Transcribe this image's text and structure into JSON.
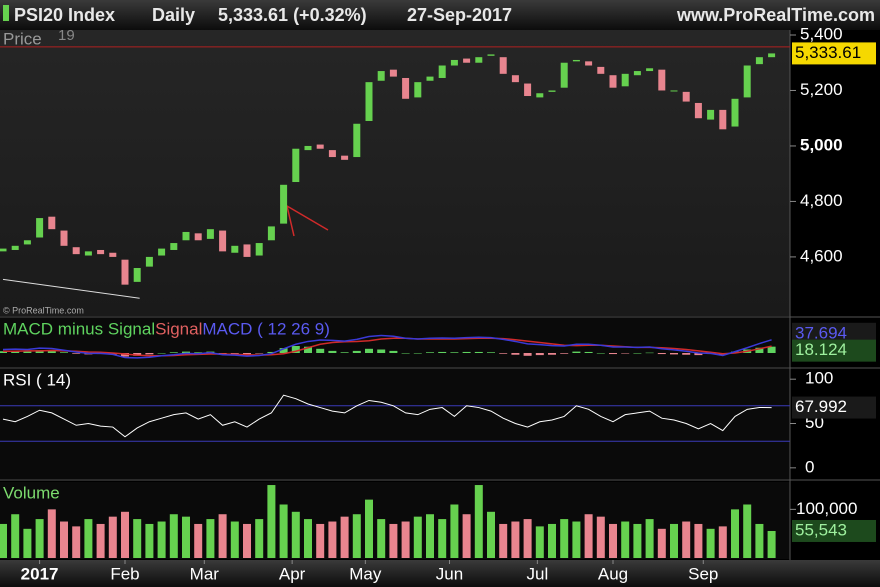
{
  "header": {
    "symbol": "PSI20 Index",
    "period": "Daily",
    "quote": "5,333.61 (+0.32%)",
    "date": "27-Sep-2017",
    "site": "www.ProRealTime.com",
    "copyright": "© ProRealTime.com"
  },
  "chart_data": [
    {
      "type": "candlestick",
      "title": "Price",
      "subtitle": "19",
      "up_color": "#66d14f",
      "down_color": "#e8858f",
      "open": [
        4620,
        4625,
        4645,
        4670,
        4745,
        4695,
        4635,
        4605,
        4625,
        4615,
        4590,
        4510,
        4565,
        4605,
        4625,
        4660,
        4685,
        4665,
        4695,
        4615,
        4645,
        4605,
        4660,
        4720,
        4870,
        4985,
        5005,
        4985,
        4965,
        4960,
        5090,
        5235,
        5275,
        5245,
        5175,
        5235,
        5245,
        5290,
        5315,
        5300,
        5325,
        5320,
        5255,
        5225,
        5175,
        5195,
        5210,
        5305,
        5305,
        5285,
        5255,
        5215,
        5255,
        5270,
        5275,
        5200,
        5195,
        5155,
        5095,
        5130,
        5070,
        5175,
        5295,
        5320
      ],
      "close": [
        4630,
        4640,
        4660,
        4740,
        4700,
        4640,
        4610,
        4620,
        4610,
        4600,
        4500,
        4560,
        4600,
        4630,
        4650,
        4690,
        4660,
        4700,
        4620,
        4640,
        4600,
        4650,
        4710,
        4860,
        4990,
        5000,
        4990,
        4960,
        4950,
        5080,
        5230,
        5270,
        5250,
        5170,
        5230,
        5250,
        5290,
        5310,
        5300,
        5320,
        5330,
        5260,
        5230,
        5180,
        5190,
        5200,
        5300,
        5310,
        5290,
        5260,
        5210,
        5260,
        5270,
        5280,
        5200,
        5200,
        5160,
        5100,
        5130,
        5060,
        5170,
        5290,
        5320,
        5333.61
      ],
      "last_label": "5,333.61",
      "reference_line": 5357,
      "trendline": {
        "x": [
          0,
          11.2
        ],
        "values": [
          4519,
          4451
        ]
      },
      "xlim": [
        0,
        63
      ],
      "ylim": [
        4387,
        5418
      ],
      "yticks": [
        {
          "value": 5400,
          "label": "5,400"
        },
        {
          "value": 5200,
          "label": "5,200"
        },
        {
          "value": 5000,
          "label": "5,000"
        },
        {
          "value": 4800,
          "label": "4,800"
        },
        {
          "value": 4600,
          "label": "4,600"
        }
      ]
    },
    {
      "type": "macd",
      "series": [
        {
          "name": "MACD minus Signal",
          "color": "#5fd35f",
          "negative_color": "#e8858f",
          "values": [
            5,
            6,
            4,
            8,
            6,
            2,
            -2,
            -4,
            -3,
            -4,
            -10,
            -8,
            -4,
            0,
            2,
            4,
            2,
            4,
            -2,
            -2,
            -4,
            -1,
            3,
            14,
            20,
            18,
            12,
            6,
            2,
            6,
            12,
            10,
            6,
            0,
            0,
            2,
            3,
            2,
            3,
            3,
            2,
            -2,
            -5,
            -8,
            -6,
            -5,
            -2,
            4,
            3,
            0,
            -3,
            -1,
            0,
            1,
            -3,
            -4,
            -5,
            -6,
            -3,
            -5,
            4,
            10,
            15,
            18.124
          ]
        },
        {
          "name": "Signal",
          "color": "#d02a2a",
          "values": [
            5,
            5,
            6,
            6,
            7,
            6,
            5,
            3,
            2,
            0,
            -3,
            -6,
            -8,
            -8,
            -7,
            -5,
            -4,
            -3,
            -3,
            -4,
            -5,
            -6,
            -5,
            -2,
            5,
            15,
            25,
            30,
            32,
            33,
            35,
            40,
            42,
            42,
            40,
            40,
            40,
            40,
            41,
            42,
            42,
            41,
            38,
            34,
            30,
            26,
            22,
            21,
            22,
            22,
            20,
            18,
            16,
            16,
            15,
            13,
            10,
            6,
            2,
            -2,
            0,
            5,
            12,
            19.57
          ]
        },
        {
          "name": "MACD ( 12 26 9)",
          "color": "#3a3ad8",
          "values": [
            10,
            11,
            10,
            14,
            13,
            8,
            3,
            -1,
            -1,
            -4,
            -13,
            -14,
            -12,
            -8,
            -5,
            -1,
            -2,
            1,
            -5,
            -6,
            -9,
            -7,
            -2,
            12,
            25,
            33,
            37,
            36,
            34,
            39,
            47,
            50,
            48,
            42,
            40,
            42,
            43,
            42,
            44,
            45,
            44,
            39,
            33,
            26,
            24,
            21,
            20,
            25,
            25,
            22,
            17,
            17,
            16,
            17,
            12,
            9,
            5,
            0,
            -1,
            -7,
            4,
            15,
            27,
            37.694
          ]
        }
      ],
      "xlim": [
        0,
        63
      ],
      "ylim": [
        -40,
        100
      ]
    },
    {
      "type": "rsi",
      "title": "RSI ( 14)",
      "color": "#ffffff",
      "level_color": "#3a3ab8",
      "values": [
        55,
        52,
        58,
        65,
        62,
        55,
        48,
        50,
        47,
        46,
        35,
        45,
        52,
        56,
        60,
        62,
        55,
        60,
        48,
        52,
        46,
        55,
        62,
        82,
        78,
        72,
        68,
        64,
        62,
        70,
        76,
        74,
        70,
        62,
        60,
        66,
        68,
        58,
        70,
        68,
        64,
        56,
        50,
        46,
        52,
        54,
        58,
        70,
        66,
        58,
        52,
        60,
        62,
        64,
        56,
        54,
        50,
        44,
        50,
        42,
        58,
        66,
        68,
        67.992
      ],
      "levels": [
        70,
        30
      ],
      "xlim": [
        0,
        63
      ],
      "ylim": [
        -12.6,
        111.5
      ],
      "yticks": [
        100,
        50,
        0
      ]
    },
    {
      "type": "volume",
      "title": "Volume",
      "up_color": "#66d14f",
      "down_color": "#e8858f",
      "values": [
        70000,
        90000,
        60000,
        80000,
        100000,
        75000,
        65000,
        80000,
        70000,
        85000,
        95000,
        80000,
        70000,
        75000,
        90000,
        85000,
        70000,
        80000,
        90000,
        75000,
        70000,
        80000,
        150000,
        110000,
        95000,
        80000,
        70000,
        75000,
        85000,
        90000,
        120000,
        80000,
        70000,
        75000,
        85000,
        90000,
        80000,
        110000,
        90000,
        150000,
        95000,
        70000,
        75000,
        80000,
        65000,
        70000,
        80000,
        75000,
        90000,
        85000,
        70000,
        75000,
        70000,
        80000,
        60000,
        70000,
        75000,
        70000,
        60000,
        65000,
        100000,
        110000,
        70000,
        55543
      ],
      "last_label": "55,543",
      "xlim": [
        0,
        63
      ],
      "ylim": [
        0,
        156250
      ],
      "yticks": [
        {
          "value": 100000,
          "label": "100,000"
        }
      ],
      "xticks": [
        {
          "value": 3,
          "label": "2017"
        },
        {
          "value": 10,
          "label": "Feb"
        },
        {
          "value": 16.5,
          "label": "Mar"
        },
        {
          "value": 23.7,
          "label": "Apr"
        },
        {
          "value": 29.7,
          "label": "May"
        },
        {
          "value": 36.6,
          "label": "Jun"
        },
        {
          "value": 43.8,
          "label": "Jul"
        },
        {
          "value": 50,
          "label": "Aug"
        },
        {
          "value": 57.4,
          "label": "Sep"
        }
      ]
    }
  ]
}
